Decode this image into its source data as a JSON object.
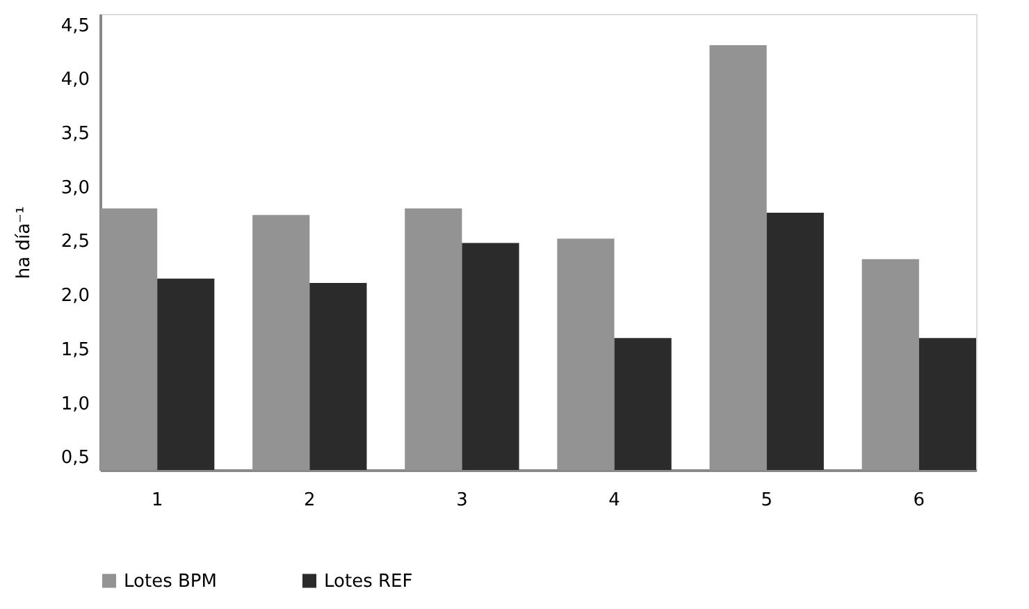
{
  "chart_data": {
    "type": "bar",
    "ylabel": "ha día⁻¹",
    "categories": [
      "1",
      "2",
      "3",
      "4",
      "5",
      "6"
    ],
    "series": [
      {
        "name": "Lotes BPM",
        "color": "#939393",
        "values": [
          2.8,
          2.74,
          2.8,
          2.52,
          4.31,
          2.33
        ]
      },
      {
        "name": "Lotes REF",
        "color": "#2b2b2b",
        "values": [
          2.15,
          2.11,
          2.48,
          1.6,
          2.76,
          1.6
        ]
      }
    ],
    "ylim": [
      0.38,
      4.6
    ],
    "yticks": [
      {
        "value": 0.5,
        "label": "0,5"
      },
      {
        "value": 1.0,
        "label": "1,0"
      },
      {
        "value": 1.5,
        "label": "1,5"
      },
      {
        "value": 2.0,
        "label": "2,0"
      },
      {
        "value": 2.5,
        "label": "2,5"
      },
      {
        "value": 3.0,
        "label": "3,0"
      },
      {
        "value": 3.5,
        "label": "3,5"
      },
      {
        "value": 4.0,
        "label": "4,0"
      },
      {
        "value": 4.5,
        "label": "4,5"
      }
    ],
    "grid": false,
    "legend": "bottom"
  }
}
